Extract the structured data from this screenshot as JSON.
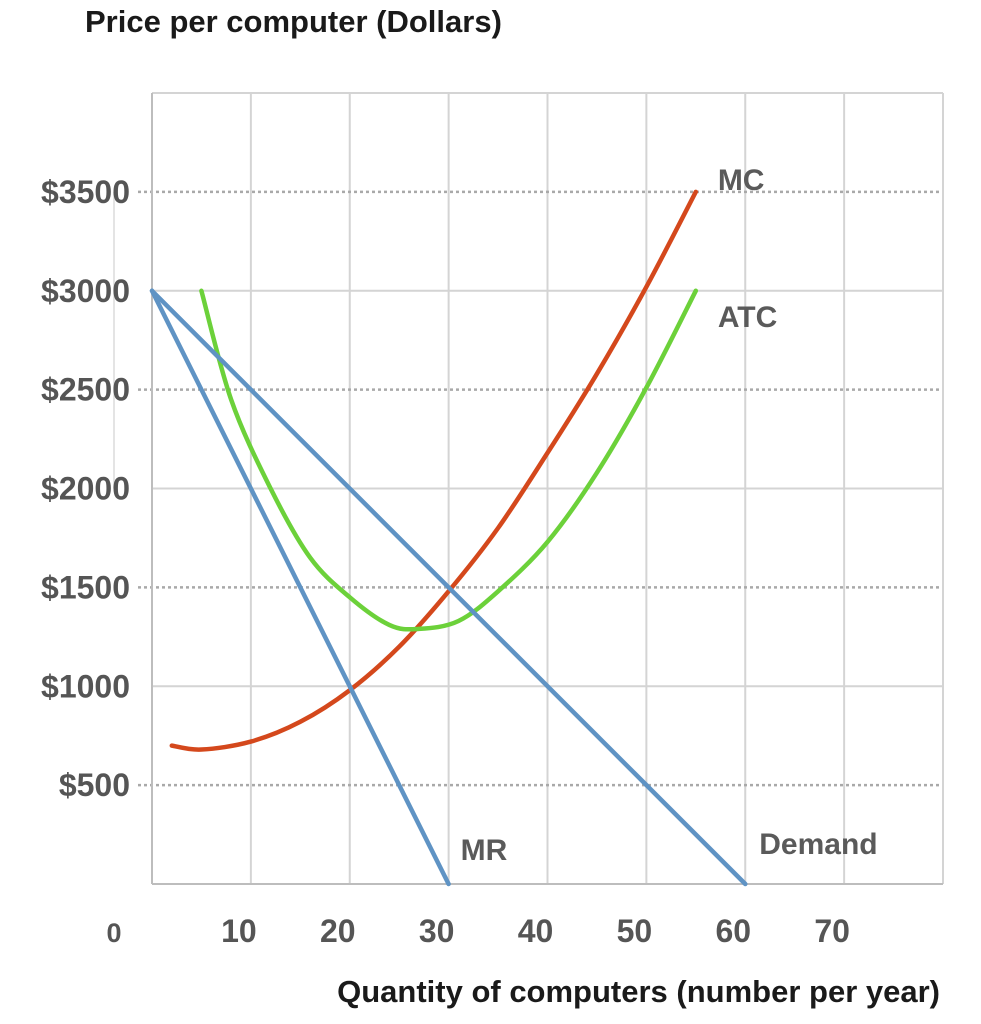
{
  "chart_data": {
    "type": "line",
    "ylabel": "Price per computer (Dollars)",
    "xlabel": "Quantity of computers (number per year)",
    "x_origin_label": "0",
    "x_ticks": [
      10,
      20,
      30,
      40,
      50,
      60,
      70
    ],
    "x_tick_labels": [
      "10",
      "20",
      "30",
      "40",
      "50",
      "60",
      "70"
    ],
    "y_ticks": [
      500,
      1000,
      1500,
      2000,
      2500,
      3000,
      3500
    ],
    "y_tick_labels": [
      "$500",
      "$1000",
      "$1500",
      "$2000",
      "$2500",
      "$3000",
      "$3500"
    ],
    "xlim": [
      0,
      80
    ],
    "ylim": [
      0,
      4000
    ],
    "grid": true,
    "legend": "none",
    "series": [
      {
        "name": "MC",
        "color": "#d4481c",
        "points": [
          [
            2,
            700
          ],
          [
            5,
            680
          ],
          [
            10,
            720
          ],
          [
            15,
            820
          ],
          [
            20,
            980
          ],
          [
            25,
            1200
          ],
          [
            30,
            1480
          ],
          [
            35,
            1800
          ],
          [
            40,
            2180
          ],
          [
            45,
            2580
          ],
          [
            50,
            3020
          ],
          [
            55,
            3500
          ]
        ]
      },
      {
        "name": "ATC",
        "color": "#6cd13a",
        "points": [
          [
            5,
            3000
          ],
          [
            8,
            2450
          ],
          [
            12,
            2000
          ],
          [
            16,
            1650
          ],
          [
            20,
            1450
          ],
          [
            24,
            1310
          ],
          [
            27,
            1290
          ],
          [
            31,
            1330
          ],
          [
            35,
            1480
          ],
          [
            40,
            1730
          ],
          [
            45,
            2080
          ],
          [
            50,
            2510
          ],
          [
            55,
            3000
          ]
        ]
      },
      {
        "name": "Demand",
        "color": "#5f93c4",
        "points": [
          [
            0,
            3000
          ],
          [
            60,
            0
          ]
        ]
      },
      {
        "name": "MR",
        "color": "#5f93c4",
        "points": [
          [
            0,
            3000
          ],
          [
            30,
            0
          ]
        ]
      }
    ]
  }
}
